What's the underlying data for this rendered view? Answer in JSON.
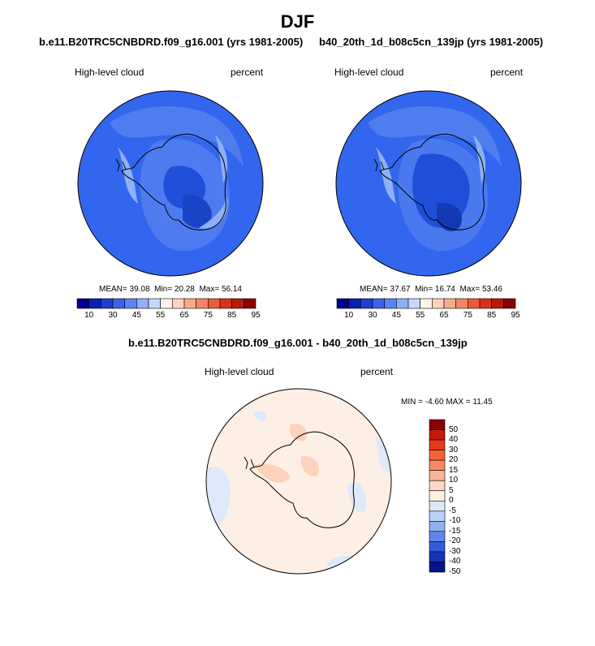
{
  "season": "DJF",
  "panels": [
    {
      "case": "b.e11.B20TRC5CNBDRD.f09_g16.001 (yrs 1981-2005)",
      "variable": "High-level cloud",
      "units": "percent",
      "mean_label": "MEAN=",
      "mean": "39.08",
      "min_label": "Min=",
      "min": "20.28",
      "max_label": "Max=",
      "max": "56.14"
    },
    {
      "case": "b40_20th_1d_b08c5cn_139jp (yrs 1981-2005)",
      "variable": "High-level cloud",
      "units": "percent",
      "mean_label": "MEAN=",
      "mean": "37.67",
      "min_label": "Min=",
      "min": "16.74",
      "max_label": "Max=",
      "max": "53.46"
    }
  ],
  "abs_colorbar": {
    "colors": [
      "#00008b",
      "#0a1fb0",
      "#1f3fd0",
      "#3b62e8",
      "#5a85f0",
      "#8fb0f5",
      "#c4d6fa",
      "#fdf3ea",
      "#fcd2bd",
      "#f8ab8c",
      "#f48563",
      "#ec5a3a",
      "#d9301a",
      "#b51a0c",
      "#8b0000"
    ],
    "tick_labels": [
      "10",
      "30",
      "45",
      "55",
      "65",
      "75",
      "85",
      "95"
    ]
  },
  "diff": {
    "title": "b.e11.B20TRC5CNBDRD.f09_g16.001 - b40_20th_1d_b08c5cn_139jp",
    "variable": "High-level cloud",
    "units": "percent",
    "min_label": "MIN =",
    "min": "-4.60",
    "max_label": "MAX =",
    "max": "11.45",
    "colors": [
      "#8b0000",
      "#c41a0c",
      "#e63a1a",
      "#f5623a",
      "#f88a63",
      "#fab496",
      "#fdd7c3",
      "#fdefe3",
      "#dde9fa",
      "#b9cff5",
      "#8eb0ee",
      "#5f88e6",
      "#2f5ddc",
      "#1534b8",
      "#06128e"
    ],
    "tick_labels": [
      "50",
      "40",
      "30",
      "20",
      "15",
      "10",
      "5",
      "0",
      "-5",
      "-10",
      "-15",
      "-20",
      "-30",
      "-40",
      "-50"
    ]
  }
}
